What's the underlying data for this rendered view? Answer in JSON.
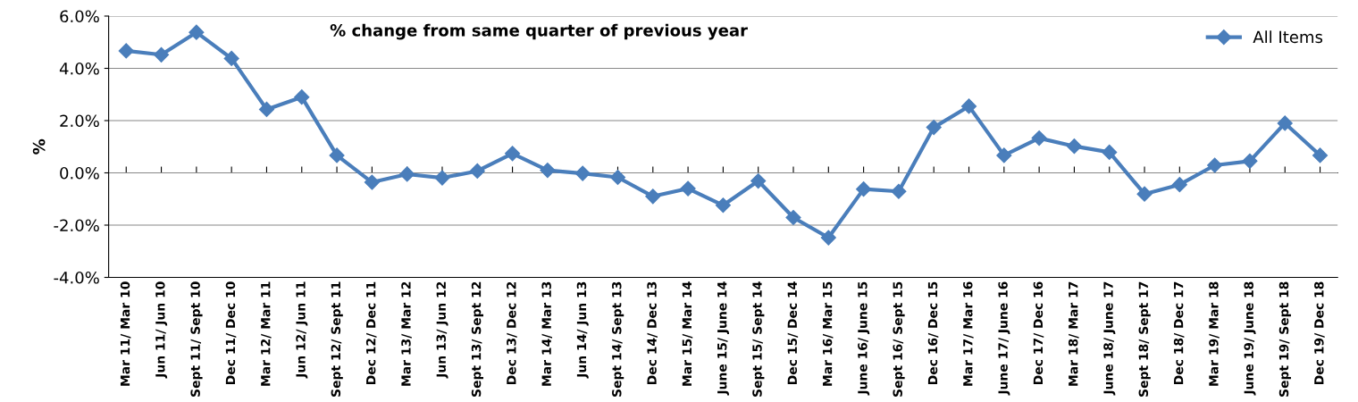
{
  "chart_data": {
    "type": "line",
    "title": "% change from same quarter of previous year",
    "ylabel": "%",
    "categories": [
      "Mar 11/ Mar 10",
      "Jun 11/ Jun 10",
      "Sept 11/ Sept 10",
      "Dec 11/ Dec 10",
      "Mar 12/ Mar 11",
      "Jun 12/ Jun 11",
      "Sept 12/ Sept 11",
      "Dec 12/ Dec 11",
      "Mar 13/ Mar 12",
      "Jun 13/ Jun 12",
      "Sept 13/ Sept 12",
      "Dec 13/ Dec 12",
      "Mar 14/ Mar 13",
      "Jun 14/ Jun 13",
      "Sept 14/ Sept 13",
      "Dec 14/ Dec 13",
      "Mar 15/ Mar 14",
      "June 15/ June 14",
      "Sept 15/ Sept 14",
      "Dec 15/ Dec 14",
      "Mar 16/ Mar 15",
      "June 16/ June 15",
      "Sept 16/ Sept 15",
      "Dec 16/ Dec 15",
      "Mar 17/ Mar 16",
      "June 17/ June 16",
      "Dec 17/ Dec 16",
      "Mar 18/ Mar 17",
      "June 18/ June 17",
      "Sept 18/ Sept 17",
      "Dec 18/ Dec 17",
      "Mar 19/ Mar 18",
      "June 19/ June 18",
      "Sept 19/ Sept 18",
      "Dec 19/ Dec 18"
    ],
    "series": [
      {
        "name": "All Items",
        "color": "#4a7ebb",
        "values": [
          4.67,
          4.52,
          5.38,
          4.38,
          2.43,
          2.9,
          0.67,
          -0.36,
          -0.05,
          -0.19,
          0.07,
          0.74,
          0.1,
          -0.02,
          -0.17,
          -0.9,
          -0.6,
          -1.24,
          -0.31,
          -1.71,
          -2.48,
          -0.62,
          -0.71,
          1.74,
          2.55,
          0.67,
          1.33,
          1.02,
          0.79,
          -0.81,
          -0.45,
          0.29,
          0.45,
          1.9,
          0.67
        ]
      }
    ],
    "ylim": [
      -4,
      6
    ],
    "yticks": [
      {
        "value": -4,
        "label": "-4.0%"
      },
      {
        "value": -2,
        "label": "-2.0%"
      },
      {
        "value": 0,
        "label": "0.0%"
      },
      {
        "value": 2,
        "label": "2.0%"
      },
      {
        "value": 4,
        "label": "4.0%"
      },
      {
        "value": 6,
        "label": "6.0%"
      }
    ],
    "grid": "y",
    "legend": "top right",
    "marker": "diamond",
    "line_style": "solid"
  }
}
